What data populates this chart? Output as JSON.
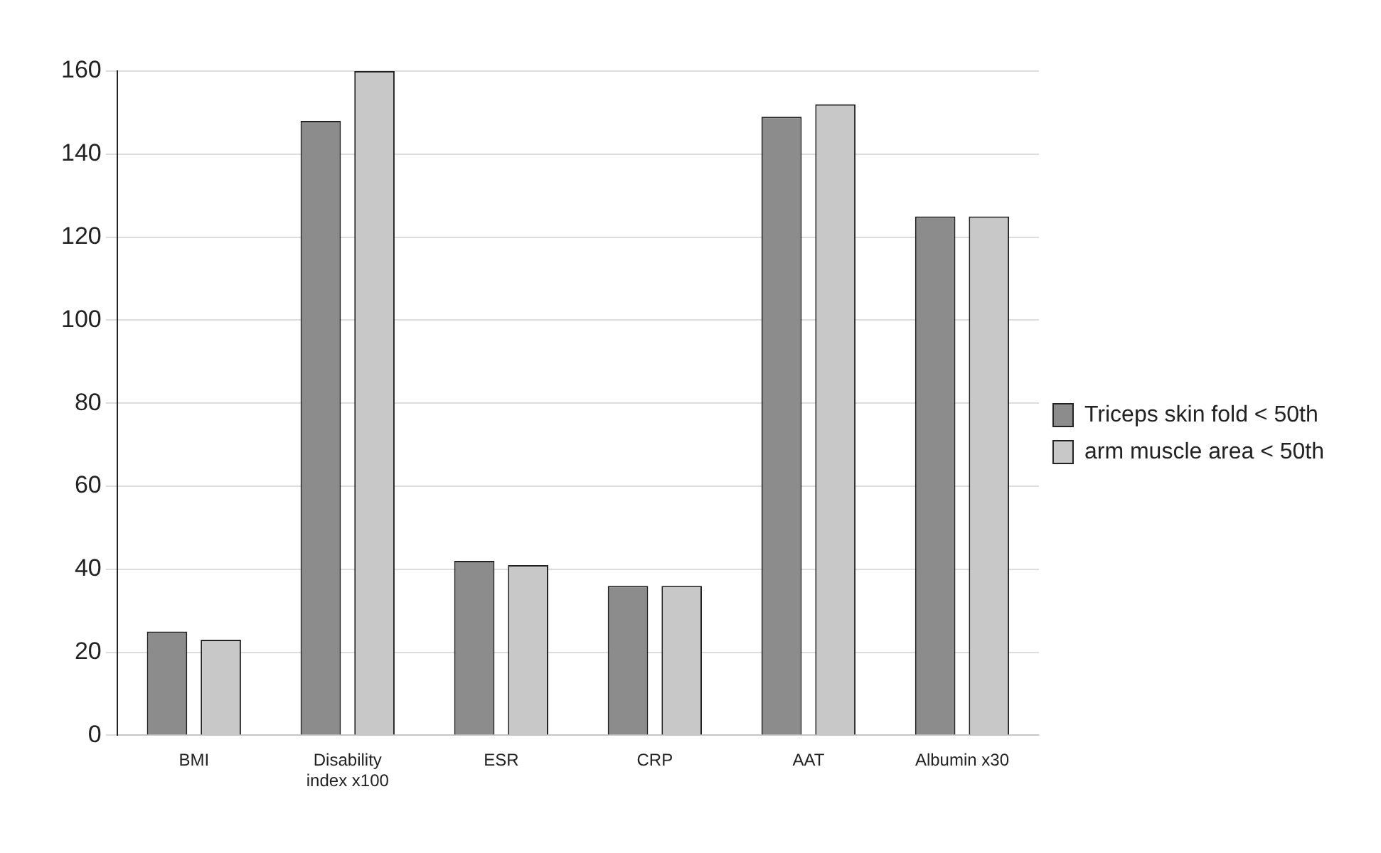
{
  "chart_data": {
    "type": "bar",
    "categories": [
      "BMI",
      "Disability index x100",
      "ESR",
      "CRP",
      "AAT",
      "Albumin x30"
    ],
    "series": [
      {
        "name": "Triceps skin fold < 50th",
        "color": "#8c8c8c",
        "values": [
          25,
          148,
          42,
          36,
          149,
          125
        ]
      },
      {
        "name": "arm muscle area < 50th",
        "color": "#c8c8c8",
        "values": [
          23,
          160,
          41,
          36,
          152,
          125
        ]
      }
    ],
    "ylim": [
      0,
      160
    ],
    "yticks": [
      0,
      20,
      40,
      60,
      80,
      100,
      120,
      140,
      160
    ],
    "grid": "y",
    "legend": "right"
  }
}
